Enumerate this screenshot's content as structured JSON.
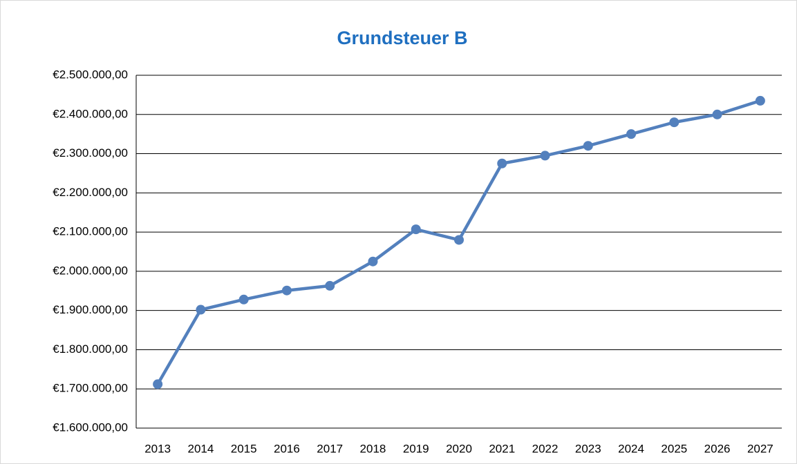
{
  "chart_data": {
    "type": "line",
    "title": "Grundsteuer B",
    "categories": [
      "2013",
      "2014",
      "2015",
      "2016",
      "2017",
      "2018",
      "2019",
      "2020",
      "2021",
      "2022",
      "2023",
      "2024",
      "2025",
      "2026",
      "2027"
    ],
    "series": [
      {
        "name": "Grundsteuer B",
        "color": "#5380bd",
        "values": [
          1712000,
          1902000,
          1928000,
          1951000,
          1963000,
          2025000,
          2107000,
          2080000,
          2275000,
          2295000,
          2320000,
          2350000,
          2380000,
          2400000,
          2435000
        ]
      }
    ],
    "ylim": [
      1600000,
      2500000
    ],
    "yticks": [
      {
        "value": 1600000,
        "label": "€1.600.000,00"
      },
      {
        "value": 1700000,
        "label": "€1.700.000,00"
      },
      {
        "value": 1800000,
        "label": "€1.800.000,00"
      },
      {
        "value": 1900000,
        "label": "€1.900.000,00"
      },
      {
        "value": 2000000,
        "label": "€2.000.000,00"
      },
      {
        "value": 2100000,
        "label": "€2.100.000,00"
      },
      {
        "value": 2200000,
        "label": "€2.200.000,00"
      },
      {
        "value": 2300000,
        "label": "€2.300.000,00"
      },
      {
        "value": 2400000,
        "label": "€2.400.000,00"
      },
      {
        "value": 2500000,
        "label": "€2.500.000,00"
      }
    ],
    "grid": true
  }
}
